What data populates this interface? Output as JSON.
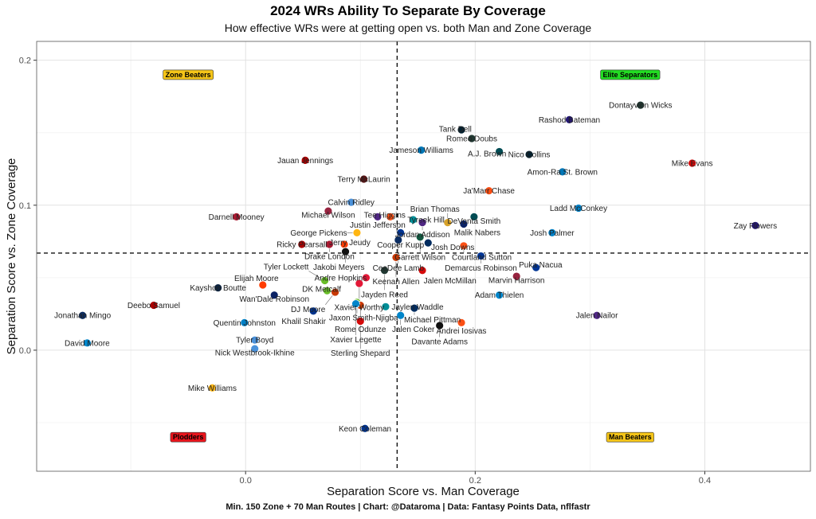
{
  "title": "2024 WRs Ability To Separate By Coverage",
  "subtitle": "How effective WRs were at getting open vs. both Man and Zone Coverage",
  "caption": "Min. 150 Zone + 70 Man Routes | Chart: @Dataroma | Data: Fantasy Points Data, nflfastr",
  "chart_data": {
    "type": "scatter",
    "xlabel": "Separation Score vs. Man Coverage",
    "ylabel": "Separation Score vs. Zone Coverage",
    "xlim": [
      -0.182,
      0.492
    ],
    "ylim": [
      -0.0835,
      0.213
    ],
    "xticks": [
      "0.0",
      "0.2",
      "0.4"
    ],
    "xtick_values": [
      0,
      0.2,
      0.4
    ],
    "yticks": [
      "0.0",
      "0.1",
      "0.2"
    ],
    "ytick_values": [
      0,
      0.1,
      0.2
    ],
    "grid": true,
    "reference_lines": {
      "x": 0.132,
      "y": 0.067
    },
    "quadrant_labels": [
      {
        "text": "Zone Beaters",
        "x": -0.05,
        "y": 0.19,
        "color": "#f5c518"
      },
      {
        "text": "Elite Separators",
        "x": 0.335,
        "y": 0.19,
        "color": "#22dd22"
      },
      {
        "text": "Plodders",
        "x": -0.05,
        "y": -0.06,
        "color": "#e8141c"
      },
      {
        "text": "Man Beaters",
        "x": 0.335,
        "y": -0.06,
        "color": "#f5c518"
      }
    ],
    "team_colors": {
      "DAL": "#0b2d62",
      "CAR": "#0085ca",
      "SF": "#aa0000",
      "NE": "#0c2340",
      "PIT": "#ffb612",
      "ATL": "#a71930",
      "LAC": "#0080c6",
      "TEN": "#4b92db",
      "CLE": "#ff3c00",
      "NYG": "#0b2265",
      "TB": "#d50a0a",
      "MIN": "#4f2683",
      "CIN": "#fb4f14",
      "WAS": "#5a1414",
      "MIA": "#008e97",
      "JAX": "#d7a22a",
      "PHI": "#004c54",
      "LAR": "#003594",
      "NYJ": "#125740",
      "IND": "#002c5f",
      "LV": "#111111",
      "CHI": "#c83803",
      "DEN": "#fb4f14",
      "DET": "#0076b6",
      "HOU": "#03202f",
      "GB": "#203731",
      "BAL": "#241773",
      "ARI": "#97233f",
      "SEA": "#69be28",
      "KC": "#e31837",
      "BUF": "#00338d"
    },
    "points": [
      {
        "name": "Jonathan Mingo",
        "team": "DAL",
        "x": -0.142,
        "y": 0.024
      },
      {
        "name": "David Moore",
        "team": "CAR",
        "x": -0.138,
        "y": 0.005
      },
      {
        "name": "Deebo Samuel",
        "team": "SF",
        "x": -0.08,
        "y": 0.031
      },
      {
        "name": "Kayshon Boutte",
        "team": "NE",
        "x": -0.024,
        "y": 0.043
      },
      {
        "name": "Mike Williams",
        "team": "PIT",
        "x": -0.029,
        "y": -0.026
      },
      {
        "name": "Darnell Mooney",
        "team": "ATL",
        "x": -0.008,
        "y": 0.092
      },
      {
        "name": "Quentin Johnston",
        "team": "LAC",
        "x": -0.001,
        "y": 0.019
      },
      {
        "name": "Tyler Boyd",
        "team": "TEN",
        "x": 0.008,
        "y": 0.007
      },
      {
        "name": "Nick Westbrook-Ikhine",
        "team": "TEN",
        "x": 0.008,
        "y": 0.001
      },
      {
        "name": "Elijah Moore",
        "team": "CLE",
        "x": 0.015,
        "y": 0.045
      },
      {
        "name": "Wan'Dale Robinson",
        "team": "NYG",
        "x": 0.025,
        "y": 0.038
      },
      {
        "name": "Jauan Jennings",
        "team": "SF",
        "x": 0.052,
        "y": 0.131
      },
      {
        "name": "Ricky Pearsall",
        "team": "SF",
        "x": 0.049,
        "y": 0.073
      },
      {
        "name": "Drake London",
        "team": "ATL",
        "x": 0.073,
        "y": 0.073
      },
      {
        "name": "Calvin Ridley",
        "team": "TEN",
        "x": 0.092,
        "y": 0.102
      },
      {
        "name": "Michael Wilson",
        "team": "ARI",
        "x": 0.072,
        "y": 0.096
      },
      {
        "name": "Justin Jefferson",
        "team": "MIN",
        "x": 0.115,
        "y": 0.092
      },
      {
        "name": "Tee Higgins",
        "team": "CIN",
        "x": 0.126,
        "y": 0.092
      },
      {
        "name": "Terry McLaurin",
        "team": "WAS",
        "x": 0.103,
        "y": 0.118
      },
      {
        "name": "Tyreek Hill",
        "team": "MIA",
        "x": 0.146,
        "y": 0.09
      },
      {
        "name": "Jordan Addison",
        "team": "MIN",
        "x": 0.154,
        "y": 0.088
      },
      {
        "name": "Brian Thomas",
        "team": "JAX",
        "x": 0.176,
        "y": 0.088
      },
      {
        "name": "DeVonta Smith",
        "team": "PHI",
        "x": 0.199,
        "y": 0.092
      },
      {
        "name": "Malik Nabers",
        "team": "NYG",
        "x": 0.19,
        "y": 0.087
      },
      {
        "name": "Jerry Jeudy",
        "team": "CLE",
        "x": 0.086,
        "y": 0.073
      },
      {
        "name": "Cooper Kupp",
        "team": "LAR",
        "x": 0.135,
        "y": 0.081
      },
      {
        "name": "George Pickens",
        "team": "PIT",
        "x": 0.097,
        "y": 0.081
      },
      {
        "name": "Garrett Wilson",
        "team": "NYJ",
        "x": 0.152,
        "y": 0.078
      },
      {
        "name": "CeeDee Lamb",
        "team": "DAL",
        "x": 0.133,
        "y": 0.076
      },
      {
        "name": "Josh Downs",
        "team": "IND",
        "x": 0.159,
        "y": 0.074
      },
      {
        "name": "Jakobi Meyers",
        "team": "LV",
        "x": 0.087,
        "y": 0.068
      },
      {
        "name": "Keenan Allen",
        "team": "CHI",
        "x": 0.131,
        "y": 0.064
      },
      {
        "name": "Courtland Sutton",
        "team": "DEN",
        "x": 0.19,
        "y": 0.072
      },
      {
        "name": "Demarcus Robinson",
        "team": "LAR",
        "x": 0.205,
        "y": 0.065
      },
      {
        "name": "Ja'Marr Chase",
        "team": "CIN",
        "x": 0.212,
        "y": 0.11
      },
      {
        "name": "Amon-Ra St. Brown",
        "team": "DET",
        "x": 0.276,
        "y": 0.123
      },
      {
        "name": "Nico Collins",
        "team": "HOU",
        "x": 0.247,
        "y": 0.135
      },
      {
        "name": "A.J. Brown",
        "team": "PHI",
        "x": 0.221,
        "y": 0.137
      },
      {
        "name": "Romeo Doubs",
        "team": "GB",
        "x": 0.197,
        "y": 0.146
      },
      {
        "name": "Tank Dell",
        "team": "HOU",
        "x": 0.188,
        "y": 0.152
      },
      {
        "name": "Rashod Bateman",
        "team": "BAL",
        "x": 0.282,
        "y": 0.159
      },
      {
        "name": "Jameson Williams",
        "team": "DET",
        "x": 0.153,
        "y": 0.138
      },
      {
        "name": "Mike Evans",
        "team": "TB",
        "x": 0.389,
        "y": 0.129
      },
      {
        "name": "Zay Flowers",
        "team": "BAL",
        "x": 0.444,
        "y": 0.086
      },
      {
        "name": "Ladd McConkey",
        "team": "LAC",
        "x": 0.29,
        "y": 0.098
      },
      {
        "name": "Josh Palmer",
        "team": "LAC",
        "x": 0.267,
        "y": 0.081
      },
      {
        "name": "Puka Nacua",
        "team": "LAR",
        "x": 0.253,
        "y": 0.057
      },
      {
        "name": "Marvin Harrison",
        "team": "ARI",
        "x": 0.236,
        "y": 0.051
      },
      {
        "name": "Adam Thielen",
        "team": "CAR",
        "x": 0.221,
        "y": 0.038
      },
      {
        "name": "Jalen Nailor",
        "team": "MIN",
        "x": 0.306,
        "y": 0.024
      },
      {
        "name": "Dontayvion Wicks",
        "team": "GB",
        "x": 0.344,
        "y": 0.169
      },
      {
        "name": "DK Metcalf",
        "team": "SEA",
        "x": 0.071,
        "y": 0.041
      },
      {
        "name": "Jayden Reed",
        "team": "GB",
        "x": 0.121,
        "y": 0.055
      },
      {
        "name": "Jalen McMillan",
        "team": "TB",
        "x": 0.154,
        "y": 0.055
      },
      {
        "name": "Andre Hopkins",
        "team": "KC",
        "x": 0.105,
        "y": 0.05
      },
      {
        "name": "Xavier Worthy",
        "team": "KC",
        "x": 0.099,
        "y": 0.046
      },
      {
        "name": "Tyler Lockett",
        "team": "SEA",
        "x": 0.069,
        "y": 0.048
      },
      {
        "name": "DJ Moore",
        "team": "CHI",
        "x": 0.078,
        "y": 0.04
      },
      {
        "name": "Jaxon Smith-Njigba",
        "team": "SEA",
        "x": 0.097,
        "y": 0.033
      },
      {
        "name": "Rome Odunze",
        "team": "CHI",
        "x": 0.1,
        "y": 0.031
      },
      {
        "name": "Xavier Legette",
        "team": "CAR",
        "x": 0.096,
        "y": 0.032
      },
      {
        "name": "Khalil Shakir",
        "team": "BUF",
        "x": 0.059,
        "y": 0.027
      },
      {
        "name": "Jaylen Waddle",
        "team": "MIA",
        "x": 0.122,
        "y": 0.03
      },
      {
        "name": "Michael Pittman",
        "team": "IND",
        "x": 0.147,
        "y": 0.029
      },
      {
        "name": "Jalen Coker",
        "team": "CAR",
        "x": 0.135,
        "y": 0.024
      },
      {
        "name": "Sterling Shepard",
        "team": "TB",
        "x": 0.1,
        "y": 0.02
      },
      {
        "name": "Davante Adams",
        "team": "LV",
        "x": 0.169,
        "y": 0.017
      },
      {
        "name": "Andrei Iosivas",
        "team": "CIN",
        "x": 0.188,
        "y": 0.019
      },
      {
        "name": "Keon Coleman",
        "team": "BUF",
        "x": 0.104,
        "y": -0.054
      }
    ]
  }
}
